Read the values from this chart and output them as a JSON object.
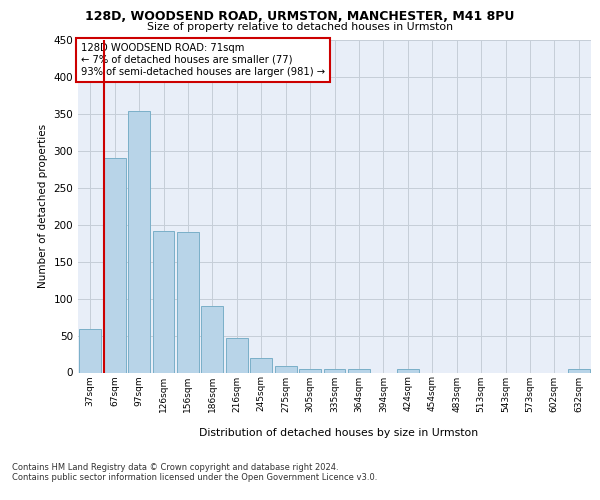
{
  "title1": "128D, WOODSEND ROAD, URMSTON, MANCHESTER, M41 8PU",
  "title2": "Size of property relative to detached houses in Urmston",
  "xlabel": "Distribution of detached houses by size in Urmston",
  "ylabel": "Number of detached properties",
  "categories": [
    "37sqm",
    "67sqm",
    "97sqm",
    "126sqm",
    "156sqm",
    "186sqm",
    "216sqm",
    "245sqm",
    "275sqm",
    "305sqm",
    "335sqm",
    "364sqm",
    "394sqm",
    "424sqm",
    "454sqm",
    "483sqm",
    "513sqm",
    "543sqm",
    "573sqm",
    "602sqm",
    "632sqm"
  ],
  "values": [
    59,
    290,
    354,
    192,
    190,
    90,
    47,
    20,
    9,
    5,
    5,
    5,
    0,
    5,
    0,
    0,
    0,
    0,
    0,
    0,
    5
  ],
  "bar_color": "#b8d4e8",
  "bar_edge_color": "#7aafc8",
  "vline_color": "#cc0000",
  "annotation_text": "128D WOODSEND ROAD: 71sqm\n← 7% of detached houses are smaller (77)\n93% of semi-detached houses are larger (981) →",
  "annotation_box_color": "#ffffff",
  "annotation_box_edge_color": "#cc0000",
  "ylim": [
    0,
    450
  ],
  "yticks": [
    0,
    50,
    100,
    150,
    200,
    250,
    300,
    350,
    400,
    450
  ],
  "footer1": "Contains HM Land Registry data © Crown copyright and database right 2024.",
  "footer2": "Contains public sector information licensed under the Open Government Licence v3.0.",
  "background_color": "#e8eef8",
  "grid_color": "#c5cdd8"
}
